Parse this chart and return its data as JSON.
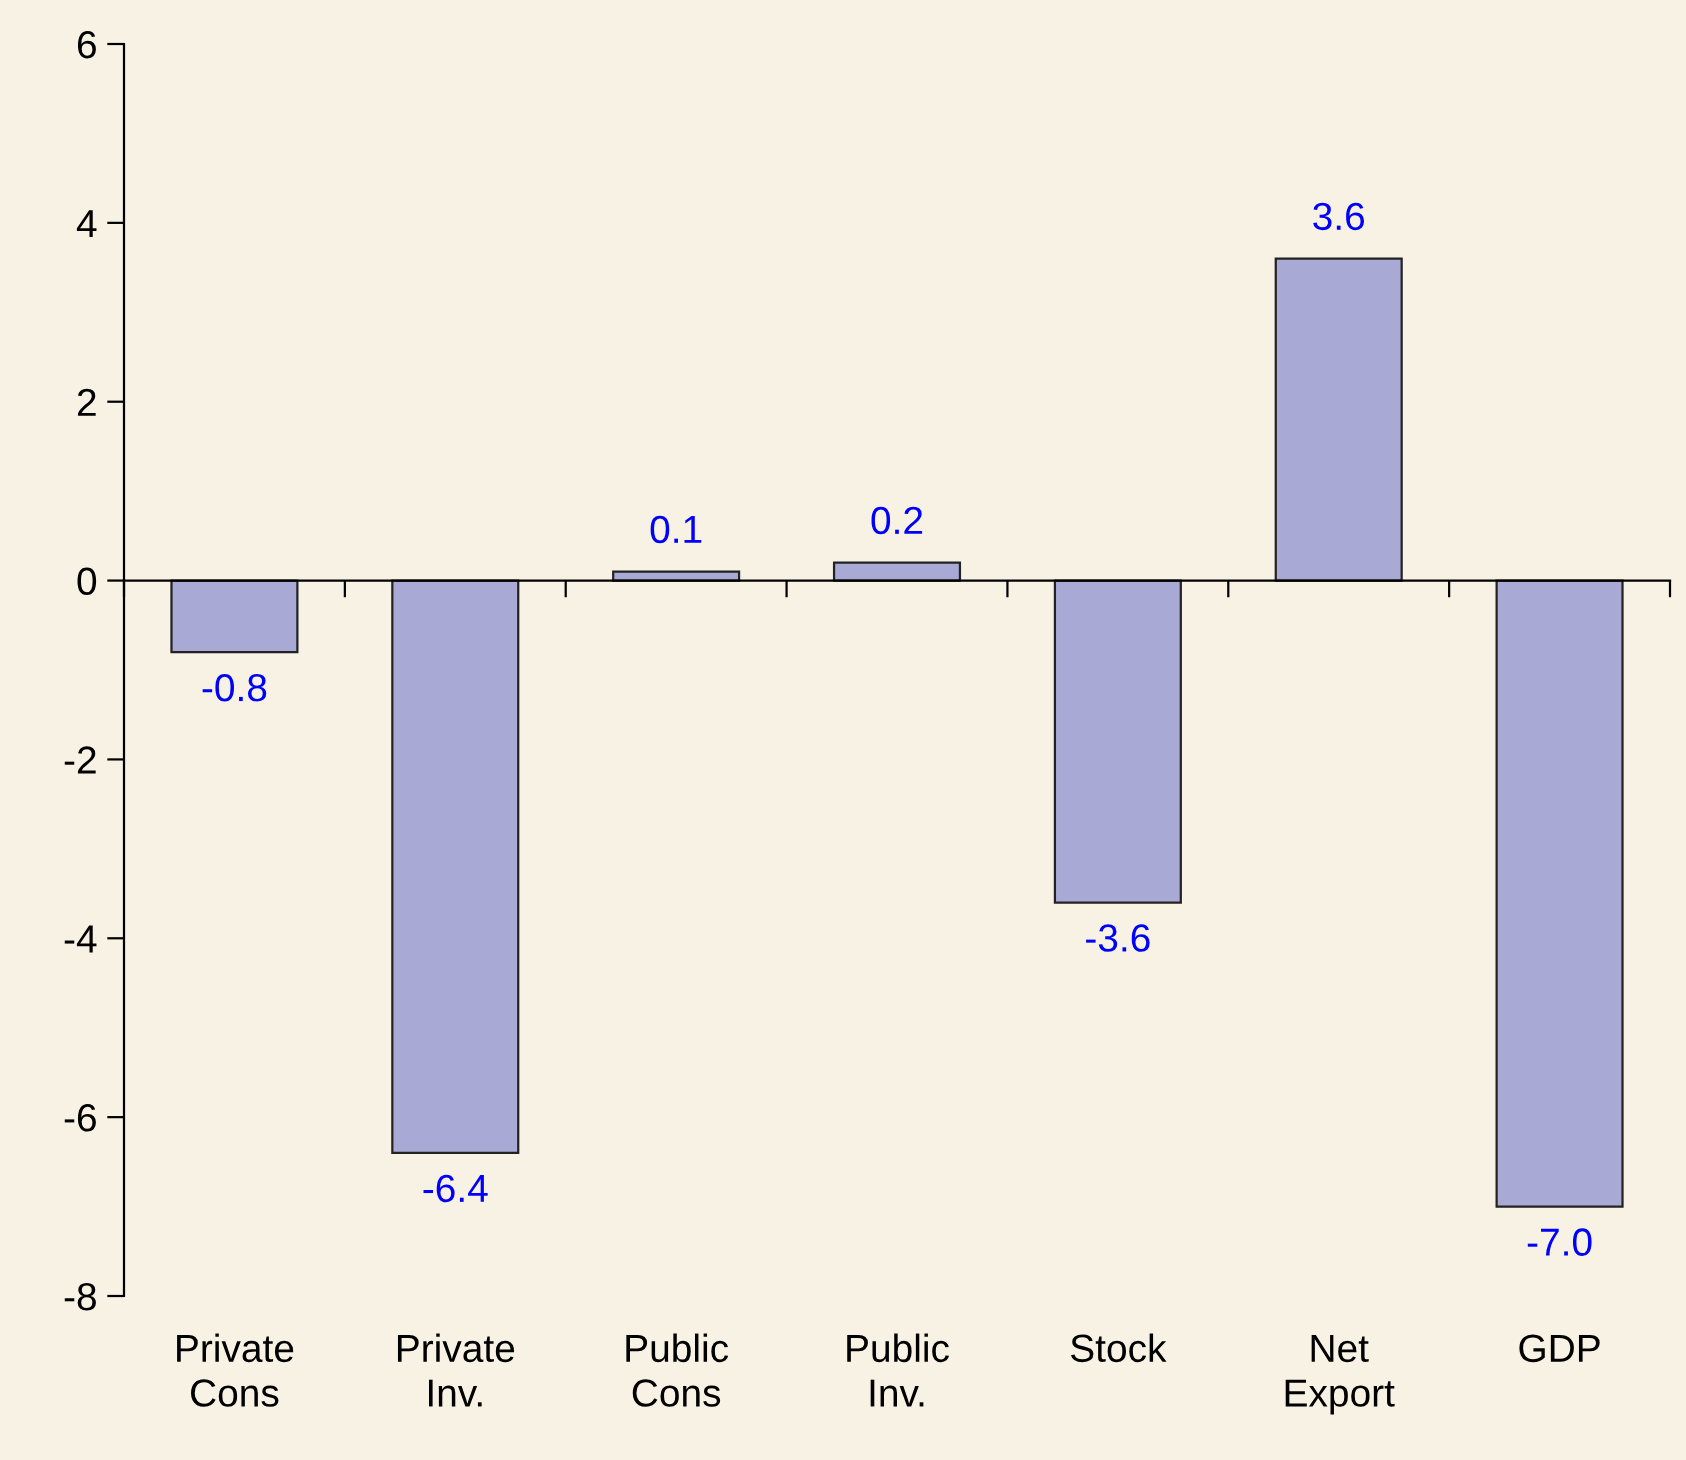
{
  "chart_data": {
    "type": "bar",
    "categories": [
      "Private\nCons",
      "Private\nInv.",
      "Public\nCons",
      "Public\nInv.",
      "Stock",
      "Net\nExport",
      "GDP"
    ],
    "values": [
      -0.8,
      -6.4,
      0.1,
      0.2,
      -3.6,
      3.6,
      -7.0
    ],
    "value_labels": [
      "-0.8",
      "-6.4",
      "0.1",
      "0.2",
      "-3.6",
      "3.6",
      "-7.0"
    ],
    "color": "#a9a9d6",
    "ylim": [
      -8,
      6
    ],
    "yticks": [
      -8,
      -6,
      -4,
      -2,
      0,
      2,
      4,
      6
    ],
    "legend": false
  }
}
